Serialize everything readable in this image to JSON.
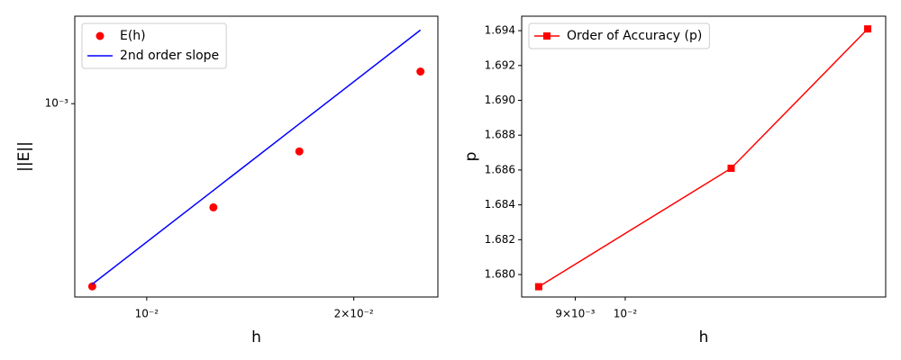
{
  "chart_data": [
    {
      "type": "line",
      "xlabel": "h",
      "ylabel": "||E||",
      "xscale": "log",
      "yscale": "log",
      "xlim": [
        0.00786,
        0.0265
      ],
      "ylim": [
        0.000188,
        0.00213
      ],
      "xticks": [
        {
          "value": 0.01,
          "label": "10⁻²"
        },
        {
          "value": 0.02,
          "label": "2×10⁻²"
        }
      ],
      "yticks": [
        {
          "value": 0.001,
          "label": "10⁻³"
        }
      ],
      "legend": "upper left",
      "series": [
        {
          "name": "E(h)",
          "color": "#ff0000",
          "marker": "circle",
          "line": false,
          "x": [
            0.008333,
            0.0125,
            0.016667,
            0.025
          ],
          "values": [
            0.000206,
            0.000408,
            0.000662,
            0.00132
          ]
        },
        {
          "name": "2nd order slope",
          "color": "#0000ff",
          "marker": "none",
          "line": true,
          "x": [
            0.008333,
            0.0125,
            0.016667,
            0.025
          ],
          "values": [
            0.00021,
            0.0004725,
            0.00084,
            0.00189
          ]
        }
      ]
    },
    {
      "type": "line",
      "xlabel": "h",
      "ylabel": "p",
      "xscale": "log",
      "yscale": "linear",
      "xlim": [
        0.00804,
        0.01731
      ],
      "ylim": [
        1.67871,
        1.69483
      ],
      "xticks": [
        {
          "value": 0.009,
          "label": "9×10⁻³"
        },
        {
          "value": 0.01,
          "label": "10⁻²"
        }
      ],
      "yticks": [
        {
          "value": 1.68,
          "label": "1.680"
        },
        {
          "value": 1.682,
          "label": "1.682"
        },
        {
          "value": 1.684,
          "label": "1.684"
        },
        {
          "value": 1.686,
          "label": "1.686"
        },
        {
          "value": 1.688,
          "label": "1.688"
        },
        {
          "value": 1.69,
          "label": "1.690"
        },
        {
          "value": 1.692,
          "label": "1.692"
        },
        {
          "value": 1.694,
          "label": "1.694"
        }
      ],
      "legend": "upper left",
      "series": [
        {
          "name": "Order of Accuracy (p)",
          "color": "#ff0000",
          "marker": "square",
          "line": true,
          "x": [
            0.008333,
            0.0125,
            0.016667
          ],
          "values": [
            1.6793,
            1.6861,
            1.6941
          ]
        }
      ]
    }
  ]
}
